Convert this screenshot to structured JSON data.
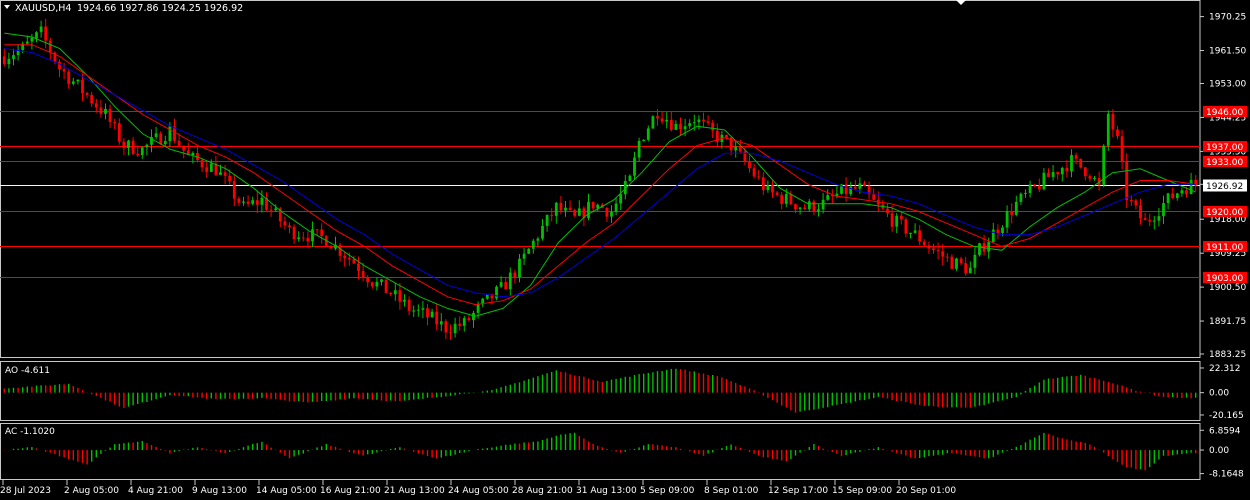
{
  "header": {
    "symbol": "XAUUSD,H4",
    "ohlc": "1924.66 1927.86 1924.25 1926.92"
  },
  "colors": {
    "background": "#000000",
    "frame": "#c8c8c8",
    "bull": "#00c000",
    "bear": "#ff0000",
    "level": "#ff0000",
    "current": "#ffffc0",
    "ma_fast": "#00c000",
    "ma_mid": "#ff0000",
    "ma_slow": "#0000dd"
  },
  "chart_data": [
    {
      "type": "candlestick",
      "ylim": [
        1883.25,
        1973.5
      ],
      "y_ticks": [
        "1970.25",
        "1961.50",
        "1953.00",
        "1944.25",
        "1935.50",
        "1927.00",
        "1918.00",
        "1909.25",
        "1900.50",
        "1891.75",
        "1883.25"
      ],
      "x_ticks": [
        "28 Jul 2023",
        "2 Aug 05:00",
        "4 Aug 21:00",
        "9 Aug 13:00",
        "14 Aug 05:00",
        "16 Aug 21:00",
        "21 Aug 13:00",
        "24 Aug 05:00",
        "28 Aug 21:00",
        "31 Aug 13:00",
        "5 Sep 09:00",
        "8 Sep 01:00",
        "12 Sep 17:00",
        "15 Sep 09:00",
        "20 Sep 01:00"
      ],
      "current_price": "1926.92",
      "levels": [
        {
          "value": 1946.0,
          "label": "1946.00"
        },
        {
          "value": 1937.0,
          "label": "1937.00"
        },
        {
          "value": 1933.0,
          "label": "1933.00"
        },
        {
          "value": 1920.0,
          "label": "1920.00"
        },
        {
          "value": 1911.0,
          "label": "1911.00"
        },
        {
          "value": 1903.0,
          "label": "1903.00"
        }
      ],
      "close_path": [
        [
          0,
          1960
        ],
        [
          4,
          1962
        ],
        [
          8,
          1966
        ],
        [
          12,
          1957
        ],
        [
          18,
          1950
        ],
        [
          22,
          1945
        ],
        [
          26,
          1937
        ],
        [
          30,
          1936
        ],
        [
          36,
          1941
        ],
        [
          40,
          1934
        ],
        [
          46,
          1931
        ],
        [
          52,
          1921
        ],
        [
          56,
          1923
        ],
        [
          62,
          1915
        ],
        [
          66,
          1914
        ],
        [
          70,
          1913
        ],
        [
          76,
          1907
        ],
        [
          80,
          1902
        ],
        [
          84,
          1899
        ],
        [
          88,
          1895
        ],
        [
          92,
          1893
        ],
        [
          96,
          1890
        ],
        [
          100,
          1891
        ],
        [
          104,
          1896
        ],
        [
          108,
          1900
        ],
        [
          112,
          1906
        ],
        [
          116,
          1914
        ],
        [
          120,
          1921
        ],
        [
          124,
          1918
        ],
        [
          128,
          1922
        ],
        [
          132,
          1920
        ],
        [
          136,
          1928
        ],
        [
          138,
          1938
        ],
        [
          140,
          1942
        ],
        [
          142,
          1946
        ],
        [
          146,
          1942
        ],
        [
          150,
          1944
        ],
        [
          154,
          1940
        ],
        [
          158,
          1937
        ],
        [
          162,
          1931
        ],
        [
          166,
          1925
        ],
        [
          170,
          1923
        ],
        [
          174,
          1921
        ],
        [
          178,
          1922
        ],
        [
          182,
          1925
        ],
        [
          186,
          1926
        ],
        [
          190,
          1921
        ],
        [
          194,
          1917
        ],
        [
          198,
          1914
        ],
        [
          202,
          1910
        ],
        [
          206,
          1907
        ],
        [
          210,
          1905
        ],
        [
          212,
          1910
        ],
        [
          216,
          1916
        ],
        [
          220,
          1922
        ],
        [
          224,
          1926
        ],
        [
          228,
          1930
        ],
        [
          232,
          1933
        ],
        [
          236,
          1930
        ],
        [
          238,
          1926
        ],
        [
          240,
          1945
        ],
        [
          242,
          1938
        ],
        [
          244,
          1924
        ],
        [
          246,
          1920
        ],
        [
          248,
          1917
        ],
        [
          252,
          1922
        ],
        [
          256,
          1926
        ],
        [
          258,
          1926.92
        ]
      ],
      "series": [
        {
          "name": "",
          "values": [
            1966,
            1965,
            1962,
            1955,
            1947,
            1940,
            1936,
            1934,
            1931,
            1926,
            1920,
            1915,
            1911,
            1906,
            1902,
            1898,
            1895,
            1893,
            1895,
            1901,
            1912,
            1919,
            1923,
            1930,
            1938,
            1942,
            1941,
            1934,
            1926,
            1922,
            1922,
            1922,
            1921,
            1918,
            1914,
            1911,
            1910,
            1916,
            1921,
            1925,
            1930,
            1931,
            1928,
            1925
          ]
        },
        {
          "name": "",
          "values": [
            1963,
            1963,
            1960,
            1955,
            1950,
            1945,
            1941,
            1937,
            1934,
            1930,
            1925,
            1920,
            1915,
            1911,
            1906,
            1902,
            1898,
            1896,
            1897,
            1900,
            1906,
            1912,
            1917,
            1924,
            1931,
            1937,
            1939,
            1937,
            1932,
            1927,
            1924,
            1923,
            1922,
            1920,
            1917,
            1914,
            1911,
            1913,
            1917,
            1921,
            1925,
            1928,
            1928,
            1927
          ]
        },
        {
          "name": "",
          "values": [
            1962,
            1961,
            1958,
            1954,
            1950,
            1946,
            1942,
            1939,
            1936,
            1932,
            1928,
            1923,
            1918,
            1914,
            1909,
            1905,
            1901,
            1899,
            1898,
            1899,
            1903,
            1908,
            1913,
            1919,
            1925,
            1931,
            1935,
            1935,
            1933,
            1930,
            1927,
            1925,
            1924,
            1922,
            1919,
            1916,
            1914,
            1914,
            1916,
            1919,
            1922,
            1925,
            1927,
            1927
          ]
        }
      ]
    },
    {
      "type": "bar",
      "indicator": "AO -4.611",
      "ylim": [
        -22.0,
        25.0
      ],
      "y_ticks": [
        "22.312",
        "0.00",
        "-20.165"
      ],
      "anchors": [
        [
          0,
          4
        ],
        [
          14,
          8
        ],
        [
          26,
          -14
        ],
        [
          36,
          -2
        ],
        [
          46,
          -6
        ],
        [
          56,
          -5
        ],
        [
          66,
          -9
        ],
        [
          76,
          -5
        ],
        [
          86,
          -8
        ],
        [
          96,
          -3
        ],
        [
          106,
          2
        ],
        [
          120,
          20
        ],
        [
          130,
          10
        ],
        [
          140,
          18
        ],
        [
          146,
          22
        ],
        [
          156,
          14
        ],
        [
          164,
          0
        ],
        [
          172,
          -18
        ],
        [
          180,
          -12
        ],
        [
          190,
          -4
        ],
        [
          200,
          -12
        ],
        [
          210,
          -14
        ],
        [
          220,
          -4
        ],
        [
          226,
          12
        ],
        [
          234,
          16
        ],
        [
          240,
          10
        ],
        [
          246,
          2
        ],
        [
          252,
          -4
        ],
        [
          258,
          -5
        ]
      ]
    },
    {
      "type": "bar",
      "indicator": "AC -1.1020",
      "ylim": [
        -9.0,
        8.0
      ],
      "y_ticks": [
        "6.8594",
        "0.00",
        "-8.1648"
      ],
      "anchors": [
        [
          0,
          0
        ],
        [
          6,
          1
        ],
        [
          12,
          -2
        ],
        [
          18,
          -5
        ],
        [
          24,
          2
        ],
        [
          30,
          3
        ],
        [
          36,
          -1
        ],
        [
          42,
          1
        ],
        [
          48,
          -1
        ],
        [
          56,
          3
        ],
        [
          62,
          -3
        ],
        [
          70,
          2
        ],
        [
          78,
          -2
        ],
        [
          86,
          1
        ],
        [
          94,
          -3
        ],
        [
          102,
          0
        ],
        [
          110,
          2
        ],
        [
          116,
          3
        ],
        [
          120,
          5
        ],
        [
          124,
          6
        ],
        [
          128,
          2
        ],
        [
          134,
          -1
        ],
        [
          140,
          2
        ],
        [
          146,
          1
        ],
        [
          152,
          -2
        ],
        [
          158,
          2
        ],
        [
          164,
          -2
        ],
        [
          170,
          -4
        ],
        [
          176,
          2
        ],
        [
          182,
          -2
        ],
        [
          190,
          1
        ],
        [
          198,
          -3
        ],
        [
          206,
          -1
        ],
        [
          214,
          -3
        ],
        [
          220,
          1
        ],
        [
          226,
          6
        ],
        [
          230,
          4
        ],
        [
          236,
          2
        ],
        [
          240,
          -2
        ],
        [
          244,
          -6
        ],
        [
          248,
          -7
        ],
        [
          252,
          -2
        ],
        [
          258,
          -1
        ]
      ]
    }
  ]
}
